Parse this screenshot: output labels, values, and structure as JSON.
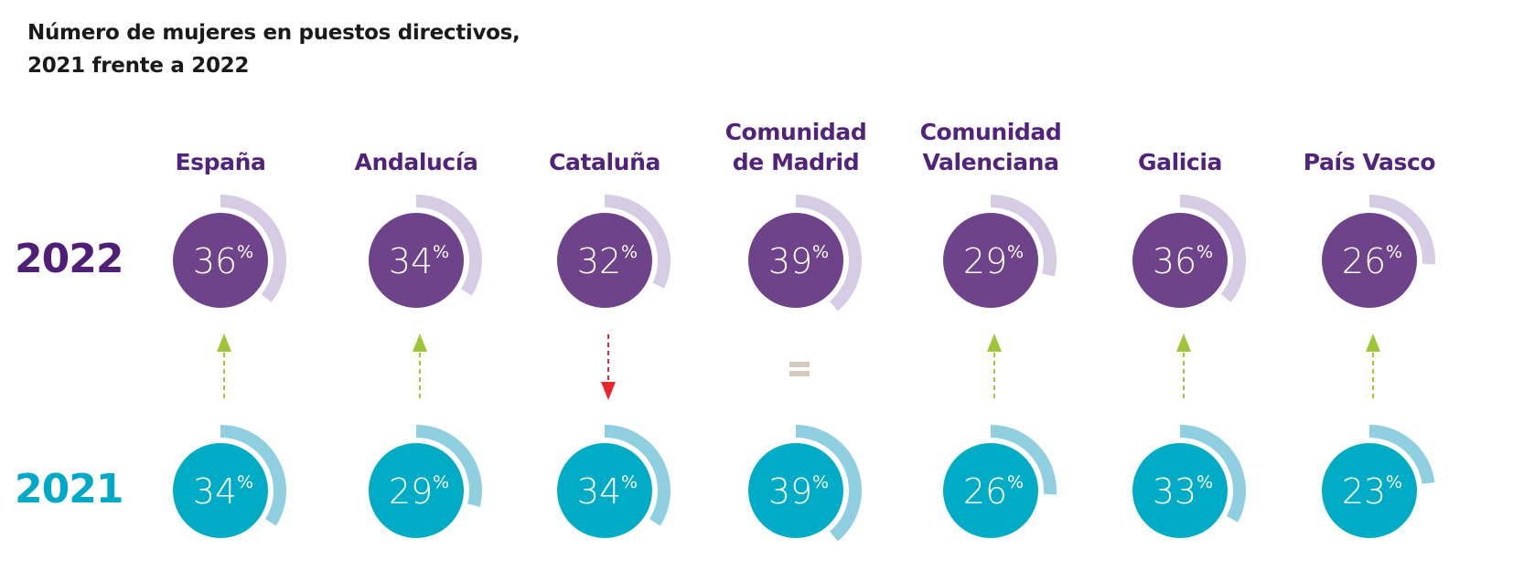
{
  "title": {
    "line1": "Número de mujeres en puestos directivos,",
    "line2": "2021 frente a 2022"
  },
  "years": {
    "y2022": "2022",
    "y2021": "2021"
  },
  "colors": {
    "circle_2022": "#6e438a",
    "arc_2022": "#d6cde5",
    "year_2022": "#4f1f78",
    "circle_2021": "#00acc5",
    "arc_2021": "#8fcfdf",
    "year_2021": "#00a9c6",
    "arrow_up": "#9fc63b",
    "arrow_down": "#e8262f",
    "equal": "#d6cabf",
    "region_label": "#52237a"
  },
  "regions": [
    {
      "name_lines": [
        "España"
      ],
      "v2022": 36,
      "v2021": 34,
      "change": "up"
    },
    {
      "name_lines": [
        "Andalucía"
      ],
      "v2022": 34,
      "v2021": 29,
      "change": "up"
    },
    {
      "name_lines": [
        "Cataluña"
      ],
      "v2022": 32,
      "v2021": 34,
      "change": "down"
    },
    {
      "name_lines": [
        "Comunidad",
        "de Madrid"
      ],
      "v2022": 39,
      "v2021": 39,
      "change": "equal"
    },
    {
      "name_lines": [
        "Comunidad",
        "Valenciana"
      ],
      "v2022": 29,
      "v2021": 26,
      "change": "up"
    },
    {
      "name_lines": [
        "Galicia"
      ],
      "v2022": 36,
      "v2021": 33,
      "change": "up"
    },
    {
      "name_lines": [
        "País Vasco"
      ],
      "v2022": 26,
      "v2021": 23,
      "change": "up"
    }
  ],
  "chart_data": {
    "type": "radial-progress",
    "title": "Número de mujeres en puestos directivos, 2021 frente a 2022",
    "categories": [
      "España",
      "Andalucía",
      "Cataluña",
      "Comunidad de Madrid",
      "Comunidad Valenciana",
      "Galicia",
      "País Vasco"
    ],
    "series": [
      {
        "name": "2022",
        "values": [
          36,
          34,
          32,
          39,
          29,
          36,
          26
        ],
        "unit": "%"
      },
      {
        "name": "2021",
        "values": [
          34,
          29,
          34,
          39,
          26,
          33,
          23
        ],
        "unit": "%"
      }
    ],
    "change_indicators": [
      "up",
      "up",
      "down",
      "equal",
      "up",
      "up",
      "up"
    ],
    "legend": "none",
    "grid": false
  }
}
